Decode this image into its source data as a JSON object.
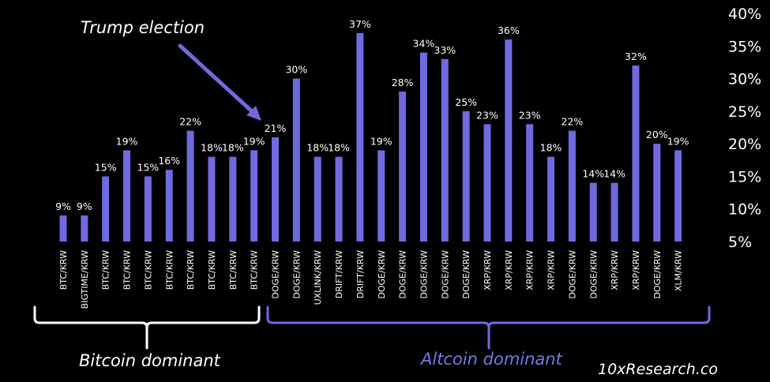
{
  "chart_data": {
    "type": "bar",
    "categories": [
      "BTC/KRW",
      "BIGTIME/KRW",
      "BTC/KRW",
      "BTC/KRW",
      "BTC/KRW",
      "BTC/KRW",
      "BTC/KRW",
      "BTC/KRW",
      "BTC/KRW",
      "BTC/KRW",
      "DOGE/KRW",
      "DOGE/KRW",
      "UXLINK/KRW",
      "DRIFT/KRW",
      "DRIFT/KRW",
      "DOGE/KRW",
      "DOGE/KRW",
      "DOGE/KRW",
      "DOGE/KRW",
      "DOGE/KRW",
      "XRP/KRW",
      "XRP/KRW",
      "XRP/KRW",
      "XRP/KRW",
      "DOGE/KRW",
      "DOGE/KRW",
      "XRP/KRW",
      "XRP/KRW",
      "DOGE/KRW",
      "XLM/KRW"
    ],
    "values": [
      9,
      9,
      15,
      19,
      15,
      16,
      22,
      18,
      18,
      19,
      21,
      30,
      18,
      18,
      37,
      19,
      28,
      34,
      33,
      25,
      23,
      36,
      23,
      18,
      22,
      14,
      14,
      32,
      20,
      19
    ],
    "value_labels": [
      "9%",
      "9%",
      "15%",
      "19%",
      "15%",
      "16%",
      "22%",
      "18%",
      "18%",
      "19%",
      "21%",
      "30%",
      "18%",
      "18%",
      "37%",
      "19%",
      "28%",
      "34%",
      "33%",
      "25%",
      "23%",
      "36%",
      "23%",
      "18%",
      "22%",
      "14%",
      "14%",
      "32%",
      "20%",
      "19%"
    ],
    "y_ticks": [
      "40%",
      "35%",
      "30%",
      "25%",
      "20%",
      "15%",
      "10%",
      "5%"
    ],
    "ylim": [
      5,
      40
    ],
    "y_axis_side": "right",
    "grid": false,
    "bar_color": "#6f6ae0",
    "title": "",
    "xlabel": "",
    "ylabel": ""
  },
  "annotations": {
    "event": "Trump election",
    "group_left": "Bitcoin dominant",
    "group_right": "Altcoin dominant",
    "source": "10xResearch.co"
  },
  "colors": {
    "background": "#000000",
    "bar": "#6f6ae0",
    "text": "#ffffff",
    "bracket_left": "#ffffff",
    "bracket_right": "#6f6ae0",
    "group_right_text": "#7a75e6"
  }
}
